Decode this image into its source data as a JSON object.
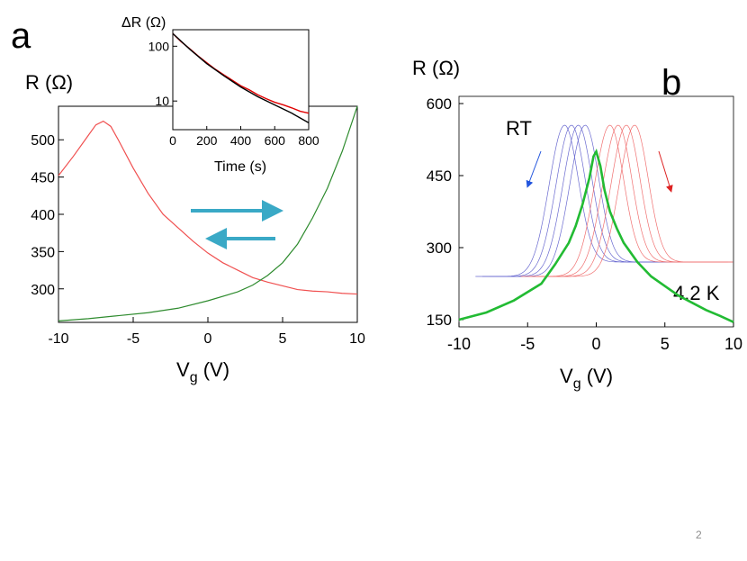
{
  "slide": {
    "page_number": "2"
  },
  "panel_a": {
    "letter": "a",
    "chart_data": {
      "type": "line",
      "ylabel": "R (Ω)",
      "xlabel_main": "V",
      "xlabel_sub": "g",
      "xlabel_unit": " (V)",
      "xlim": [
        -10,
        10
      ],
      "ylim": [
        255,
        545
      ],
      "xticks": [
        "-10",
        "-5",
        "0",
        "5",
        "10"
      ],
      "xtick_values": [
        -10,
        -5,
        0,
        5,
        10
      ],
      "yticks": [
        "300",
        "350",
        "400",
        "450",
        "500"
      ],
      "ytick_values": [
        300,
        350,
        400,
        450,
        500
      ],
      "series": [
        {
          "color": "#f05050",
          "points": [
            [
              -10,
              452
            ],
            [
              -9,
              478
            ],
            [
              -8,
              506
            ],
            [
              -7.5,
              520
            ],
            [
              -7,
              525
            ],
            [
              -6.5,
              518
            ],
            [
              -6,
              500
            ],
            [
              -5,
              462
            ],
            [
              -4,
              428
            ],
            [
              -3,
              400
            ],
            [
              -2,
              382
            ],
            [
              -1,
              364
            ],
            [
              0,
              348
            ],
            [
              1,
              335
            ],
            [
              2,
              325
            ],
            [
              3,
              315
            ],
            [
              4,
              309
            ],
            [
              5,
              304
            ],
            [
              6,
              299
            ],
            [
              7,
              297
            ],
            [
              8,
              296
            ],
            [
              9,
              294
            ],
            [
              10,
              293
            ]
          ]
        },
        {
          "color": "#2e8b2e",
          "points": [
            [
              -10,
              257
            ],
            [
              -8,
              260
            ],
            [
              -6,
              264
            ],
            [
              -4,
              268
            ],
            [
              -2,
              274
            ],
            [
              0,
              284
            ],
            [
              2,
              296
            ],
            [
              3,
              305
            ],
            [
              4,
              318
            ],
            [
              5,
              335
            ],
            [
              6,
              360
            ],
            [
              7,
              395
            ],
            [
              8,
              435
            ],
            [
              9,
              485
            ],
            [
              10,
              545
            ]
          ]
        }
      ],
      "arrow_color": "#3aa9c6",
      "inset": {
        "ylabel": "ΔR (Ω)",
        "xlabel": "Time (s)",
        "xlim": [
          0,
          800
        ],
        "ylim": [
          3,
          200
        ],
        "yscale": "log",
        "xticks": [
          "0",
          "200",
          "400",
          "600",
          "800"
        ],
        "xtick_values": [
          0,
          200,
          400,
          600,
          800
        ],
        "yticks": [
          "100",
          "10"
        ],
        "ytick_values": [
          100,
          10
        ],
        "series": [
          {
            "color": "#e00000",
            "points": [
              [
                0,
                170
              ],
              [
                50,
                120
              ],
              [
                100,
                90
              ],
              [
                150,
                66
              ],
              [
                200,
                50
              ],
              [
                250,
                38
              ],
              [
                300,
                30
              ],
              [
                350,
                24
              ],
              [
                400,
                19
              ],
              [
                450,
                16
              ],
              [
                500,
                13
              ],
              [
                550,
                11
              ],
              [
                600,
                9.5
              ],
              [
                650,
                8.5
              ],
              [
                700,
                7.5
              ],
              [
                750,
                6.5
              ],
              [
                800,
                6
              ]
            ]
          },
          {
            "color": "#000000",
            "points": [
              [
                0,
                170
              ],
              [
                100,
                88
              ],
              [
                200,
                48
              ],
              [
                300,
                29
              ],
              [
                400,
                18
              ],
              [
                500,
                12
              ],
              [
                600,
                8.5
              ],
              [
                700,
                6
              ],
              [
                800,
                4
              ]
            ]
          }
        ]
      }
    }
  },
  "panel_b": {
    "letter": "b",
    "chart_data": {
      "type": "line",
      "ylabel": "R (Ω)",
      "xlabel_main": "V",
      "xlabel_sub": "g",
      "xlabel_unit": " (V)",
      "xlim": [
        -10,
        10
      ],
      "ylim": [
        135,
        615
      ],
      "xticks": [
        "-10",
        "-5",
        "0",
        "5",
        "10"
      ],
      "xtick_values": [
        -10,
        -5,
        0,
        5,
        10
      ],
      "yticks": [
        "150",
        "300",
        "450",
        "600"
      ],
      "ytick_values": [
        150,
        300,
        450,
        600
      ],
      "annotations": {
        "rt": "RT",
        "low_t": "4.2 K"
      },
      "rt_peaks_blue": [
        -2.3,
        -1.8,
        -1.3,
        -0.8
      ],
      "rt_peaks_red": [
        1.0,
        1.6,
        2.2,
        2.8
      ],
      "rt_peak_value": 555,
      "rt_left_floor": 240,
      "rt_right_floor": 270,
      "green_series": {
        "color": "#22bb33",
        "points": [
          [
            -10,
            150
          ],
          [
            -8,
            165
          ],
          [
            -6,
            190
          ],
          [
            -4,
            225
          ],
          [
            -3,
            265
          ],
          [
            -2,
            310
          ],
          [
            -1.5,
            345
          ],
          [
            -1,
            390
          ],
          [
            -0.5,
            445
          ],
          [
            -0.2,
            490
          ],
          [
            0,
            500
          ],
          [
            0.3,
            470
          ],
          [
            0.6,
            420
          ],
          [
            1,
            375
          ],
          [
            1.5,
            340
          ],
          [
            2,
            310
          ],
          [
            3,
            270
          ],
          [
            4,
            240
          ],
          [
            5,
            220
          ],
          [
            6,
            200
          ],
          [
            7,
            185
          ],
          [
            8,
            170
          ],
          [
            9,
            158
          ],
          [
            10,
            145
          ]
        ]
      },
      "blue_color": "#6a6ad0",
      "red_color": "#f07070",
      "arrow_blue": "#2255dd",
      "arrow_red": "#dd2222",
      "rt_text_color": "#3b4fa0",
      "low_t_text_color": "#22aa33"
    }
  }
}
